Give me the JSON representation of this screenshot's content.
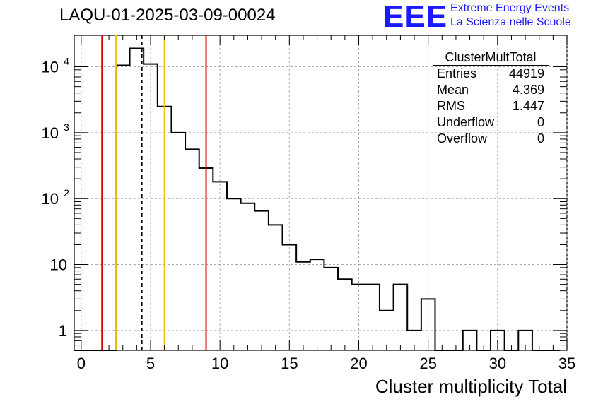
{
  "header": {
    "run_title": "LAQU-01-2025-03-09-00024",
    "logo_text": "EEE",
    "logo_line1": "Extreme Energy Events",
    "logo_line2": "La Scienza nelle Scuole",
    "brand_color": "#1a1aff"
  },
  "stats": {
    "title": "ClusterMultTotal",
    "rows": [
      {
        "label": "Entries",
        "value": "44919"
      },
      {
        "label": "Mean",
        "value": "4.369"
      },
      {
        "label": "RMS",
        "value": "1.447"
      },
      {
        "label": "Underflow",
        "value": "0"
      },
      {
        "label": "Overflow",
        "value": "0"
      }
    ]
  },
  "chart_data": {
    "type": "histogram",
    "title": "LAQU-01-2025-03-09-00024",
    "xlabel": "Cluster multiplicity Total",
    "ylabel": "",
    "xlim": [
      -0.5,
      35
    ],
    "ylim": [
      0.5,
      30000
    ],
    "yscale": "log",
    "grid": true,
    "bin_width": 1,
    "bins_start": -0.5,
    "values": [
      0,
      0,
      0,
      10500,
      19000,
      11000,
      2500,
      1000,
      560,
      290,
      180,
      100,
      85,
      65,
      40,
      20,
      11,
      12,
      9,
      6,
      5,
      5,
      2,
      5,
      1,
      3,
      0,
      0,
      1,
      0,
      1,
      0,
      1,
      0,
      0
    ],
    "x_ticks": [
      0,
      5,
      10,
      15,
      20,
      25,
      30,
      35
    ],
    "y_ticks": [
      {
        "value": 1,
        "base": "1",
        "exp": ""
      },
      {
        "value": 10,
        "base": "10",
        "exp": ""
      },
      {
        "value": 100,
        "base": "10",
        "exp": "2"
      },
      {
        "value": 1000,
        "base": "10",
        "exp": "3"
      },
      {
        "value": 10000,
        "base": "10",
        "exp": "4"
      }
    ],
    "vertical_lines": [
      {
        "x": 1.5,
        "color": "#dd0000",
        "style": "solid"
      },
      {
        "x": 2.5,
        "color": "#f2c200",
        "style": "solid"
      },
      {
        "x": 4.369,
        "color": "#000000",
        "style": "dashed"
      },
      {
        "x": 6.0,
        "color": "#f2c200",
        "style": "solid"
      },
      {
        "x": 9.0,
        "color": "#dd0000",
        "style": "solid"
      }
    ]
  }
}
